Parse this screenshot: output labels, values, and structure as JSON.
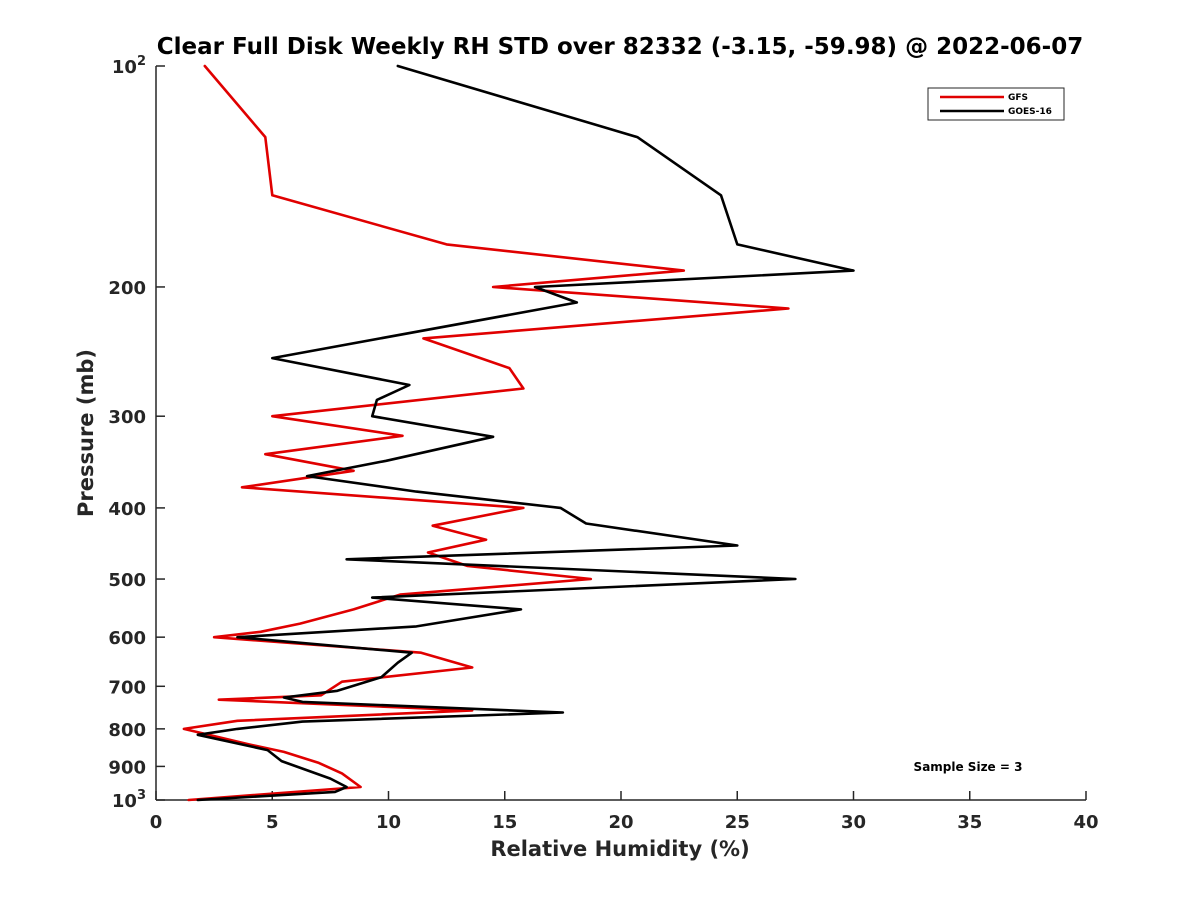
{
  "chart_data": {
    "type": "line",
    "title": "Clear Full Disk Weekly RH STD over 82332 (-3.15, -59.98) @ 2022-06-07",
    "xlabel": "Relative Humidity (%)",
    "ylabel": "Pressure (mb)",
    "xlim": [
      0,
      40
    ],
    "ylim": [
      100,
      1000
    ],
    "y_scale": "log",
    "y_reversed": true,
    "x_ticks": [
      "0",
      "5",
      "10",
      "15",
      "20",
      "25",
      "30",
      "35",
      "40"
    ],
    "y_ticks": [
      {
        "value": 100,
        "label": "10",
        "sup": "2"
      },
      {
        "value": 200,
        "label": "200",
        "sup": ""
      },
      {
        "value": 300,
        "label": "300",
        "sup": ""
      },
      {
        "value": 400,
        "label": "400",
        "sup": ""
      },
      {
        "value": 500,
        "label": "500",
        "sup": ""
      },
      {
        "value": 600,
        "label": "600",
        "sup": ""
      },
      {
        "value": 700,
        "label": "700",
        "sup": ""
      },
      {
        "value": 800,
        "label": "800",
        "sup": ""
      },
      {
        "value": 900,
        "label": "900",
        "sup": ""
      },
      {
        "value": 1000,
        "label": "10",
        "sup": "3"
      }
    ],
    "grid": false,
    "legend_position": "top-right",
    "annotation": "Sample Size = 3",
    "series": [
      {
        "name": "GFS",
        "color": "#e00000",
        "points": [
          [
            2.1,
            100
          ],
          [
            4.7,
            125
          ],
          [
            5.0,
            150
          ],
          [
            12.5,
            175
          ],
          [
            22.7,
            190
          ],
          [
            14.5,
            200
          ],
          [
            27.2,
            214
          ],
          [
            11.5,
            235
          ],
          [
            15.2,
            258
          ],
          [
            15.8,
            275
          ],
          [
            5.0,
            300
          ],
          [
            10.6,
            319
          ],
          [
            4.7,
            338
          ],
          [
            8.5,
            356
          ],
          [
            3.7,
            375
          ],
          [
            15.8,
            400
          ],
          [
            11.9,
            423
          ],
          [
            14.2,
            442
          ],
          [
            11.7,
            460
          ],
          [
            13.4,
            480
          ],
          [
            18.7,
            500
          ],
          [
            10.5,
            525
          ],
          [
            8.5,
            550
          ],
          [
            6.2,
            575
          ],
          [
            4.5,
            590
          ],
          [
            2.5,
            600
          ],
          [
            11.4,
            630
          ],
          [
            13.6,
            660
          ],
          [
            8.0,
            690
          ],
          [
            7.1,
            720
          ],
          [
            2.7,
            730
          ],
          [
            13.6,
            755
          ],
          [
            3.5,
            780
          ],
          [
            1.2,
            800
          ],
          [
            4.0,
            840
          ],
          [
            5.5,
            860
          ],
          [
            7.0,
            890
          ],
          [
            8.0,
            920
          ],
          [
            8.8,
            960
          ],
          [
            6.0,
            975
          ],
          [
            1.4,
            1000
          ]
        ]
      },
      {
        "name": "GOES-16",
        "color": "#000000",
        "points": [
          [
            10.4,
            100
          ],
          [
            20.7,
            125
          ],
          [
            24.3,
            150
          ],
          [
            25.0,
            175
          ],
          [
            30.0,
            190
          ],
          [
            16.3,
            200
          ],
          [
            18.1,
            210
          ],
          [
            5.0,
            250
          ],
          [
            10.9,
            272
          ],
          [
            9.5,
            285
          ],
          [
            9.3,
            300
          ],
          [
            14.5,
            320
          ],
          [
            9.9,
            345
          ],
          [
            6.5,
            362
          ],
          [
            11.2,
            380
          ],
          [
            17.4,
            400
          ],
          [
            18.5,
            420
          ],
          [
            25.0,
            450
          ],
          [
            8.2,
            470
          ],
          [
            27.5,
            500
          ],
          [
            9.3,
            530
          ],
          [
            15.7,
            550
          ],
          [
            11.2,
            580
          ],
          [
            3.5,
            600
          ],
          [
            11.0,
            630
          ],
          [
            10.4,
            650
          ],
          [
            9.7,
            680
          ],
          [
            7.8,
            710
          ],
          [
            5.5,
            725
          ],
          [
            6.3,
            735
          ],
          [
            17.5,
            760
          ],
          [
            6.3,
            782
          ],
          [
            3.5,
            800
          ],
          [
            1.8,
            815
          ],
          [
            4.8,
            855
          ],
          [
            5.4,
            885
          ],
          [
            7.5,
            935
          ],
          [
            8.2,
            960
          ],
          [
            7.7,
            975
          ],
          [
            1.8,
            1000
          ]
        ]
      }
    ]
  }
}
